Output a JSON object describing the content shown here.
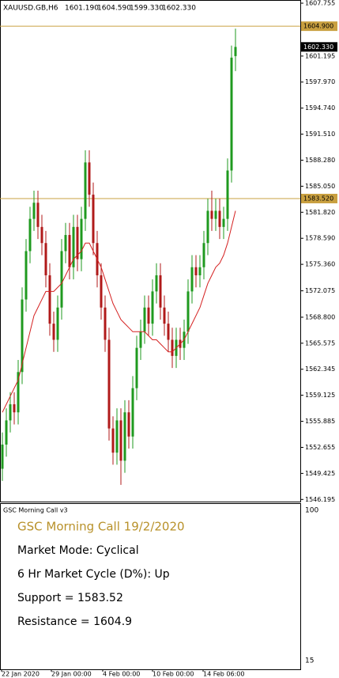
{
  "chart_data": {
    "type": "candlestick",
    "title": "XAUUSD.GB,H6",
    "header_values": [
      "1601.190",
      "1604.590",
      "1599.330",
      "1602.330"
    ],
    "open": [
      1550,
      1553,
      1556,
      1558,
      1557,
      1562,
      1571,
      1577,
      1581,
      1583,
      1580,
      1578,
      1574,
      1568,
      1566,
      1570,
      1577,
      1579,
      1575,
      1580,
      1576,
      1581,
      1588,
      1584,
      1578,
      1574,
      1570,
      1566,
      1555,
      1552,
      1556,
      1551,
      1557,
      1554,
      1560,
      1565,
      1567,
      1570,
      1568,
      1572,
      1574,
      1570,
      1568,
      1566,
      1564,
      1566,
      1565,
      1567,
      1572,
      1575,
      1574,
      1575,
      1578,
      1582,
      1581,
      1582,
      1580,
      1581,
      1587,
      1601.19
    ],
    "high": [
      1554.5,
      1557.5,
      1559.5,
      1559.5,
      1563.5,
      1572.5,
      1578.5,
      1582.5,
      1584.5,
      1584.5,
      1581.5,
      1579.5,
      1575.5,
      1569.5,
      1571.5,
      1578.5,
      1580.5,
      1580.5,
      1581.5,
      1581.5,
      1582.5,
      1589.5,
      1589.5,
      1585.5,
      1579.5,
      1575.5,
      1571.5,
      1567.5,
      1556.5,
      1557.5,
      1557.5,
      1558.5,
      1558.5,
      1561.5,
      1566.5,
      1568.5,
      1571.5,
      1571.5,
      1573.5,
      1575.5,
      1575.5,
      1571.5,
      1569.5,
      1567.5,
      1567.5,
      1567.5,
      1568.5,
      1573.5,
      1576.5,
      1576.5,
      1576.5,
      1579.5,
      1583.5,
      1584.5,
      1583.5,
      1583.5,
      1582.5,
      1588.5,
      1602.5,
      1604.59
    ],
    "low": [
      1548.5,
      1551.5,
      1554.5,
      1555.5,
      1555.5,
      1560.5,
      1569.5,
      1575.5,
      1579.5,
      1578.5,
      1576.5,
      1572.5,
      1566.5,
      1564.5,
      1564.5,
      1568.5,
      1575.5,
      1573.5,
      1573.5,
      1574.5,
      1574.5,
      1579.5,
      1582.5,
      1576.5,
      1572.5,
      1568.5,
      1564.5,
      1553.5,
      1550.5,
      1550.5,
      1548,
      1549.5,
      1552.5,
      1552.5,
      1558.5,
      1563.5,
      1565.5,
      1566.5,
      1566.5,
      1570.5,
      1568.5,
      1566.5,
      1564.5,
      1562.5,
      1562.5,
      1563.5,
      1563.5,
      1565.5,
      1570.5,
      1572.5,
      1572.5,
      1573.5,
      1576.5,
      1579.5,
      1579.5,
      1578.5,
      1578.5,
      1579.5,
      1585.5,
      1599.33
    ],
    "close": [
      1553,
      1556,
      1558,
      1557,
      1562,
      1571,
      1577,
      1581,
      1583,
      1580,
      1578,
      1574,
      1568,
      1566,
      1570,
      1577,
      1579,
      1575,
      1580,
      1576,
      1581,
      1588,
      1584,
      1578,
      1574,
      1570,
      1566,
      1555,
      1552,
      1556,
      1551,
      1557,
      1554,
      1560,
      1565,
      1567,
      1570,
      1568,
      1572,
      1574,
      1570,
      1568,
      1566,
      1564,
      1566,
      1565,
      1567,
      1572,
      1575,
      1574,
      1575,
      1578,
      1582,
      1581,
      1582,
      1580,
      1581,
      1587,
      1601,
      1602.33
    ],
    "ma": [
      1557,
      1558,
      1559,
      1560,
      1561,
      1563,
      1565,
      1567,
      1569,
      1570,
      1571,
      1572,
      1572,
      1572,
      1572.5,
      1573,
      1574,
      1575,
      1576,
      1576.5,
      1577,
      1578,
      1578,
      1577,
      1576,
      1575,
      1573.5,
      1572,
      1570.5,
      1569.5,
      1568.5,
      1568,
      1567.5,
      1567,
      1567,
      1567,
      1567,
      1566.5,
      1566,
      1566,
      1565.5,
      1565,
      1564.5,
      1564.5,
      1565,
      1565.5,
      1566,
      1567,
      1568,
      1569,
      1570,
      1571.5,
      1573,
      1574,
      1575,
      1575.5,
      1576.5,
      1578,
      1580,
      1582
    ],
    "up_color": "#1f9a1f",
    "down_color": "#b01a1a",
    "ma_color": "#d42020",
    "ylim": [
      1545.93,
      1608.15
    ],
    "yticks": [
      1607.755,
      1601.195,
      {
        "value": 1597.97,
        "label": "1597.970"
      },
      {
        "value": 1594.74,
        "label": "1594.740"
      },
      {
        "value": 1591.51,
        "label": "1591.510"
      },
      {
        "value": 1588.28,
        "label": "1588.280"
      },
      {
        "value": 1585.05,
        "label": "1585.050"
      },
      {
        "value": 1581.82,
        "label": "1581.820"
      },
      {
        "value": 1578.59,
        "label": "1578.590"
      },
      {
        "value": 1575.36,
        "label": "1575.360"
      },
      1572.075,
      {
        "value": 1568.8,
        "label": "1568.800"
      },
      1565.575,
      1562.345,
      1559.125,
      1555.885,
      1552.655,
      1549.425,
      1546.195
    ],
    "hlines": [
      {
        "value": 1604.9,
        "label": "1604.900"
      },
      {
        "value": 1583.52,
        "label": "1583.520"
      }
    ],
    "hline_color": "#c9a040",
    "last": {
      "value": 1602.33,
      "label": "1602.330"
    },
    "xticks": [
      "22 Jan 2020",
      "29 Jan 00:00",
      "4 Feb 00:00",
      "10 Feb 00:00",
      "14 Feb 06:00"
    ]
  },
  "indicator_panel": {
    "name": "GSC Morning Call v3",
    "scale": [
      "100",
      "15"
    ],
    "heading": "GSC Morning Call 19/2/2020",
    "lines": [
      "Market Mode: Cyclical",
      "6 Hr Market Cycle (D%): Up",
      "Support = 1583.52",
      "Resistance = 1604.9"
    ]
  }
}
